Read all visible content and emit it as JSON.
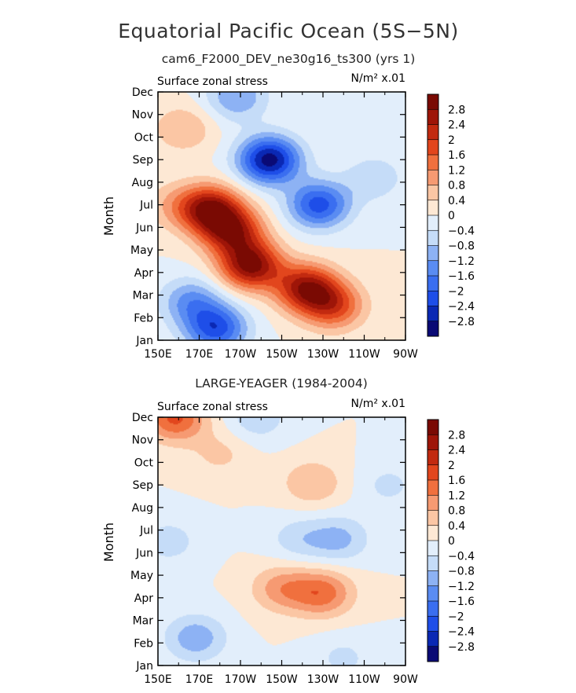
{
  "figure": {
    "title": "Equatorial Pacific Ocean (5S−5N)"
  },
  "colorbar": {
    "levels": [
      "2.8",
      "2.4",
      "2",
      "1.6",
      "1.2",
      "0.8",
      "0.4",
      "0",
      "−0.4",
      "−0.8",
      "−1.2",
      "−1.6",
      "−2",
      "−2.4",
      "−2.8"
    ],
    "colors": [
      "#0a0a75",
      "#0a28b4",
      "#1e4ee8",
      "#3a6ef0",
      "#5a8cf2",
      "#8db2f4",
      "#c5dcf8",
      "#e2eefb",
      "#fde8d4",
      "#fbc6a4",
      "#f69a72",
      "#f0703e",
      "#e2461d",
      "#c22a10",
      "#9e1508",
      "#7a0a03"
    ]
  },
  "chart_data": [
    {
      "type": "heatmap",
      "title": "cam6_F2000_DEV_ne30g16_ts300 (yrs 1)",
      "left_label": "Surface zonal stress",
      "right_label": "N/m² x.01",
      "xlabel": "",
      "ylabel": "Month",
      "x_ticks": [
        "150E",
        "170E",
        "170W",
        "150W",
        "130W",
        "110W",
        "90W"
      ],
      "y_ticks": [
        "Jan",
        "Feb",
        "Mar",
        "Apr",
        "May",
        "Jun",
        "Jul",
        "Aug",
        "Sep",
        "Oct",
        "Nov",
        "Dec"
      ],
      "xlim": [
        150,
        270
      ],
      "ylim": [
        1,
        12
      ],
      "features": [
        {
          "kind": "max",
          "lon": 195,
          "month": 4.3,
          "value": 2.9
        },
        {
          "kind": "max",
          "lon": 222,
          "month": 3.3,
          "value": 2.6
        },
        {
          "kind": "max",
          "lon": 175,
          "month": 6.8,
          "value": 2.8
        },
        {
          "kind": "max",
          "lon": 186,
          "month": 5.8,
          "value": 2.4
        },
        {
          "kind": "max",
          "lon": 235,
          "month": 2.5,
          "value": 1.8
        },
        {
          "kind": "max",
          "lon": 162,
          "month": 10.4,
          "value": 0.8
        },
        {
          "kind": "max",
          "lon": 157,
          "month": 7.0,
          "value": 0.6
        },
        {
          "kind": "min",
          "lon": 204,
          "month": 9.0,
          "value": -3.0
        },
        {
          "kind": "min",
          "lon": 228,
          "month": 7.0,
          "value": -2.2
        },
        {
          "kind": "min",
          "lon": 188,
          "month": 11.8,
          "value": -1.2
        },
        {
          "kind": "min",
          "lon": 178,
          "month": 1.5,
          "value": -2.2
        },
        {
          "kind": "min",
          "lon": 166,
          "month": 2.7,
          "value": -1.3
        },
        {
          "kind": "min",
          "lon": 255,
          "month": 8.2,
          "value": -0.7
        }
      ]
    },
    {
      "type": "heatmap",
      "title": "LARGE-YEAGER (1984-2004)",
      "left_label": "Surface zonal stress",
      "right_label": "N/m² x.01",
      "xlabel": "",
      "ylabel": "Month",
      "x_ticks": [
        "150E",
        "170E",
        "170W",
        "150W",
        "130W",
        "110W",
        "90W"
      ],
      "y_ticks": [
        "Jan",
        "Feb",
        "Mar",
        "Apr",
        "May",
        "Jun",
        "Jul",
        "Aug",
        "Sep",
        "Oct",
        "Nov",
        "Dec"
      ],
      "xlim": [
        150,
        270
      ],
      "ylim": [
        1,
        12
      ],
      "features": [
        {
          "kind": "max",
          "lon": 158,
          "month": 12.0,
          "value": 1.7
        },
        {
          "kind": "max",
          "lon": 230,
          "month": 4.2,
          "value": 1.4
        },
        {
          "kind": "max",
          "lon": 210,
          "month": 4.4,
          "value": 1.0
        },
        {
          "kind": "max",
          "lon": 225,
          "month": 9.1,
          "value": 0.8
        },
        {
          "kind": "max",
          "lon": 180,
          "month": 10.4,
          "value": 0.5
        },
        {
          "kind": "min",
          "lon": 168,
          "month": 2.2,
          "value": -1.1
        },
        {
          "kind": "min",
          "lon": 238,
          "month": 6.6,
          "value": -0.9
        },
        {
          "kind": "min",
          "lon": 218,
          "month": 6.6,
          "value": -0.6
        },
        {
          "kind": "min",
          "lon": 155,
          "month": 6.5,
          "value": -0.6
        },
        {
          "kind": "min",
          "lon": 198,
          "month": 12.0,
          "value": -0.7
        },
        {
          "kind": "min",
          "lon": 240,
          "month": 1.3,
          "value": -0.5
        },
        {
          "kind": "min",
          "lon": 262,
          "month": 9.0,
          "value": -0.5
        }
      ]
    }
  ]
}
